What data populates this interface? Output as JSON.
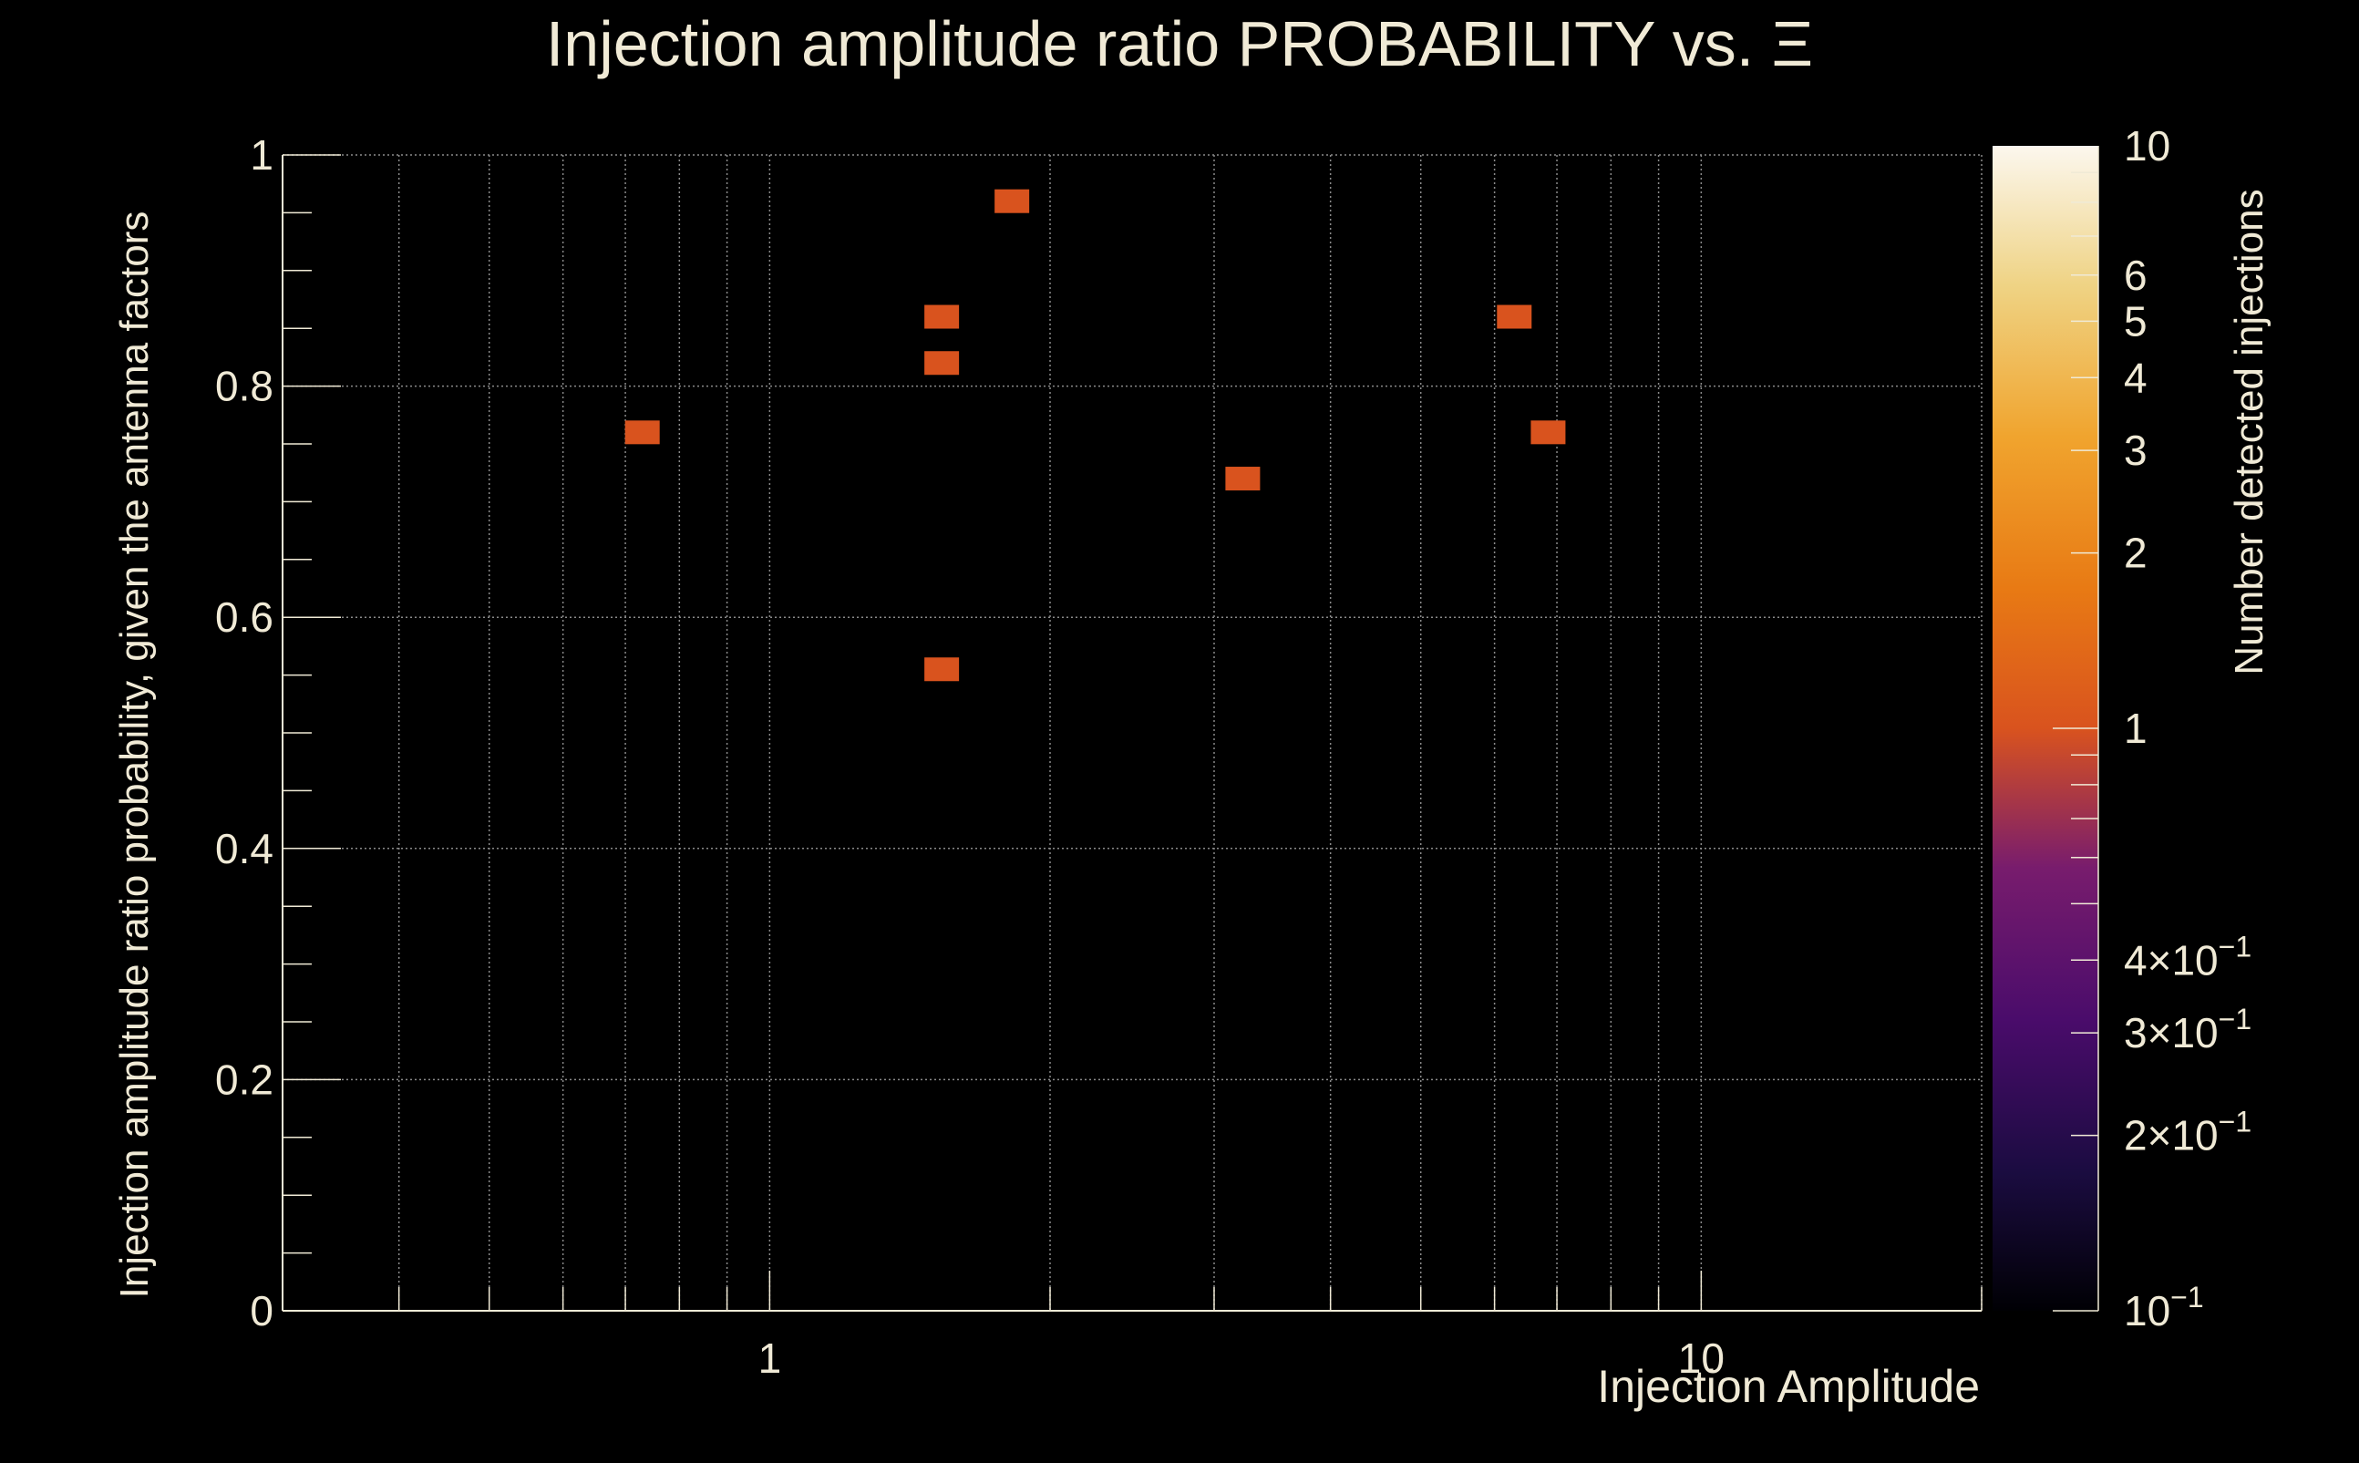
{
  "chart_data": {
    "type": "heatmap",
    "title": "Injection amplitude ratio PROBABILITY vs.  Ξ",
    "xlabel": "Injection Amplitude",
    "ylabel": "Injection amplitude ratio probability, given the antenna factors",
    "zlabel": "Number detected injections",
    "xscale": "log",
    "xlim": [
      0.3,
      20
    ],
    "ylim": [
      0,
      1
    ],
    "zscale": "log",
    "zlim": [
      0.1,
      10
    ],
    "grid": true,
    "x_tick_labels": [
      {
        "value": 1,
        "label": "1"
      },
      {
        "value": 10,
        "label": "10"
      }
    ],
    "y_tick_labels": [
      {
        "value": 0,
        "label": "0"
      },
      {
        "value": 0.2,
        "label": "0.2"
      },
      {
        "value": 0.4,
        "label": "0.4"
      },
      {
        "value": 0.6,
        "label": "0.6"
      },
      {
        "value": 0.8,
        "label": "0.8"
      },
      {
        "value": 1,
        "label": "1"
      }
    ],
    "z_tick_labels": [
      {
        "value": 10,
        "mantissa": "10",
        "exponent": ""
      },
      {
        "value": 6,
        "mantissa": "6",
        "exponent": ""
      },
      {
        "value": 5,
        "mantissa": "5",
        "exponent": ""
      },
      {
        "value": 4,
        "mantissa": "4",
        "exponent": ""
      },
      {
        "value": 3,
        "mantissa": "3",
        "exponent": ""
      },
      {
        "value": 2,
        "mantissa": "2",
        "exponent": ""
      },
      {
        "value": 1,
        "mantissa": "1",
        "exponent": ""
      },
      {
        "value": 0.4,
        "mantissa": "4×10",
        "exponent": "−1"
      },
      {
        "value": 0.3,
        "mantissa": "3×10",
        "exponent": "−1"
      },
      {
        "value": 0.2,
        "mantissa": "2×10",
        "exponent": "−1"
      },
      {
        "value": 0.1,
        "mantissa": "10",
        "exponent": "−1"
      }
    ],
    "cells": [
      {
        "x": 0.73,
        "y": 0.76,
        "count": 1
      },
      {
        "x": 1.53,
        "y": 0.86,
        "count": 1
      },
      {
        "x": 1.53,
        "y": 0.82,
        "count": 1
      },
      {
        "x": 1.53,
        "y": 0.555,
        "count": 1
      },
      {
        "x": 1.82,
        "y": 0.96,
        "count": 1
      },
      {
        "x": 3.22,
        "y": 0.72,
        "count": 1
      },
      {
        "x": 6.3,
        "y": 0.86,
        "count": 1
      },
      {
        "x": 6.85,
        "y": 0.76,
        "count": 1
      }
    ],
    "colors": {
      "background": "#000000",
      "text": "#f0ead6",
      "axis": "#f0ead6",
      "grid": "#8a8a8a",
      "cell": "#d9531e"
    }
  }
}
